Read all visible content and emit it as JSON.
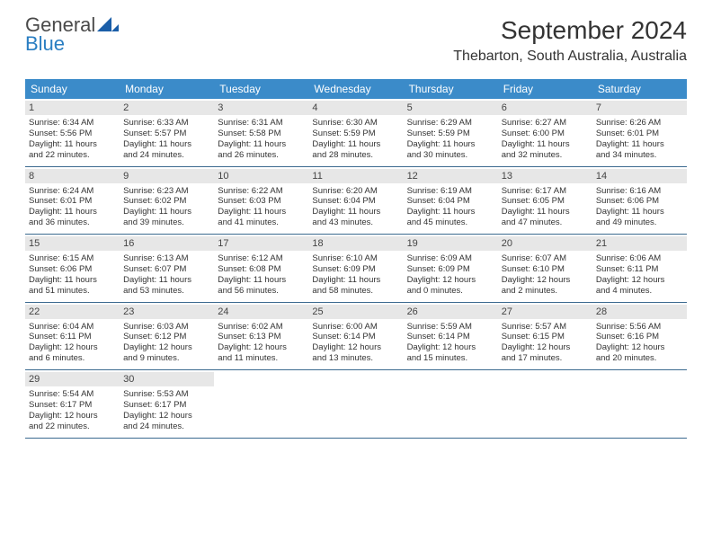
{
  "brand": {
    "word1": "General",
    "word2": "Blue",
    "word1_color": "#4a4a4a",
    "word2_color": "#2a7ec2",
    "logo_fill": "#1a5ea8"
  },
  "title": "September 2024",
  "location": "Thebarton, South Australia, Australia",
  "colors": {
    "header_bg": "#3b8bc9",
    "header_text": "#ffffff",
    "daynum_bg": "#e7e7e7",
    "daynum_text": "#444444",
    "body_text": "#333333",
    "row_border": "#3b6a8f",
    "page_bg": "#ffffff"
  },
  "weekdays": [
    "Sunday",
    "Monday",
    "Tuesday",
    "Wednesday",
    "Thursday",
    "Friday",
    "Saturday"
  ],
  "weeks": [
    [
      {
        "day": "1",
        "sunrise": "Sunrise: 6:34 AM",
        "sunset": "Sunset: 5:56 PM",
        "daylight1": "Daylight: 11 hours",
        "daylight2": "and 22 minutes."
      },
      {
        "day": "2",
        "sunrise": "Sunrise: 6:33 AM",
        "sunset": "Sunset: 5:57 PM",
        "daylight1": "Daylight: 11 hours",
        "daylight2": "and 24 minutes."
      },
      {
        "day": "3",
        "sunrise": "Sunrise: 6:31 AM",
        "sunset": "Sunset: 5:58 PM",
        "daylight1": "Daylight: 11 hours",
        "daylight2": "and 26 minutes."
      },
      {
        "day": "4",
        "sunrise": "Sunrise: 6:30 AM",
        "sunset": "Sunset: 5:59 PM",
        "daylight1": "Daylight: 11 hours",
        "daylight2": "and 28 minutes."
      },
      {
        "day": "5",
        "sunrise": "Sunrise: 6:29 AM",
        "sunset": "Sunset: 5:59 PM",
        "daylight1": "Daylight: 11 hours",
        "daylight2": "and 30 minutes."
      },
      {
        "day": "6",
        "sunrise": "Sunrise: 6:27 AM",
        "sunset": "Sunset: 6:00 PM",
        "daylight1": "Daylight: 11 hours",
        "daylight2": "and 32 minutes."
      },
      {
        "day": "7",
        "sunrise": "Sunrise: 6:26 AM",
        "sunset": "Sunset: 6:01 PM",
        "daylight1": "Daylight: 11 hours",
        "daylight2": "and 34 minutes."
      }
    ],
    [
      {
        "day": "8",
        "sunrise": "Sunrise: 6:24 AM",
        "sunset": "Sunset: 6:01 PM",
        "daylight1": "Daylight: 11 hours",
        "daylight2": "and 36 minutes."
      },
      {
        "day": "9",
        "sunrise": "Sunrise: 6:23 AM",
        "sunset": "Sunset: 6:02 PM",
        "daylight1": "Daylight: 11 hours",
        "daylight2": "and 39 minutes."
      },
      {
        "day": "10",
        "sunrise": "Sunrise: 6:22 AM",
        "sunset": "Sunset: 6:03 PM",
        "daylight1": "Daylight: 11 hours",
        "daylight2": "and 41 minutes."
      },
      {
        "day": "11",
        "sunrise": "Sunrise: 6:20 AM",
        "sunset": "Sunset: 6:04 PM",
        "daylight1": "Daylight: 11 hours",
        "daylight2": "and 43 minutes."
      },
      {
        "day": "12",
        "sunrise": "Sunrise: 6:19 AM",
        "sunset": "Sunset: 6:04 PM",
        "daylight1": "Daylight: 11 hours",
        "daylight2": "and 45 minutes."
      },
      {
        "day": "13",
        "sunrise": "Sunrise: 6:17 AM",
        "sunset": "Sunset: 6:05 PM",
        "daylight1": "Daylight: 11 hours",
        "daylight2": "and 47 minutes."
      },
      {
        "day": "14",
        "sunrise": "Sunrise: 6:16 AM",
        "sunset": "Sunset: 6:06 PM",
        "daylight1": "Daylight: 11 hours",
        "daylight2": "and 49 minutes."
      }
    ],
    [
      {
        "day": "15",
        "sunrise": "Sunrise: 6:15 AM",
        "sunset": "Sunset: 6:06 PM",
        "daylight1": "Daylight: 11 hours",
        "daylight2": "and 51 minutes."
      },
      {
        "day": "16",
        "sunrise": "Sunrise: 6:13 AM",
        "sunset": "Sunset: 6:07 PM",
        "daylight1": "Daylight: 11 hours",
        "daylight2": "and 53 minutes."
      },
      {
        "day": "17",
        "sunrise": "Sunrise: 6:12 AM",
        "sunset": "Sunset: 6:08 PM",
        "daylight1": "Daylight: 11 hours",
        "daylight2": "and 56 minutes."
      },
      {
        "day": "18",
        "sunrise": "Sunrise: 6:10 AM",
        "sunset": "Sunset: 6:09 PM",
        "daylight1": "Daylight: 11 hours",
        "daylight2": "and 58 minutes."
      },
      {
        "day": "19",
        "sunrise": "Sunrise: 6:09 AM",
        "sunset": "Sunset: 6:09 PM",
        "daylight1": "Daylight: 12 hours",
        "daylight2": "and 0 minutes."
      },
      {
        "day": "20",
        "sunrise": "Sunrise: 6:07 AM",
        "sunset": "Sunset: 6:10 PM",
        "daylight1": "Daylight: 12 hours",
        "daylight2": "and 2 minutes."
      },
      {
        "day": "21",
        "sunrise": "Sunrise: 6:06 AM",
        "sunset": "Sunset: 6:11 PM",
        "daylight1": "Daylight: 12 hours",
        "daylight2": "and 4 minutes."
      }
    ],
    [
      {
        "day": "22",
        "sunrise": "Sunrise: 6:04 AM",
        "sunset": "Sunset: 6:11 PM",
        "daylight1": "Daylight: 12 hours",
        "daylight2": "and 6 minutes."
      },
      {
        "day": "23",
        "sunrise": "Sunrise: 6:03 AM",
        "sunset": "Sunset: 6:12 PM",
        "daylight1": "Daylight: 12 hours",
        "daylight2": "and 9 minutes."
      },
      {
        "day": "24",
        "sunrise": "Sunrise: 6:02 AM",
        "sunset": "Sunset: 6:13 PM",
        "daylight1": "Daylight: 12 hours",
        "daylight2": "and 11 minutes."
      },
      {
        "day": "25",
        "sunrise": "Sunrise: 6:00 AM",
        "sunset": "Sunset: 6:14 PM",
        "daylight1": "Daylight: 12 hours",
        "daylight2": "and 13 minutes."
      },
      {
        "day": "26",
        "sunrise": "Sunrise: 5:59 AM",
        "sunset": "Sunset: 6:14 PM",
        "daylight1": "Daylight: 12 hours",
        "daylight2": "and 15 minutes."
      },
      {
        "day": "27",
        "sunrise": "Sunrise: 5:57 AM",
        "sunset": "Sunset: 6:15 PM",
        "daylight1": "Daylight: 12 hours",
        "daylight2": "and 17 minutes."
      },
      {
        "day": "28",
        "sunrise": "Sunrise: 5:56 AM",
        "sunset": "Sunset: 6:16 PM",
        "daylight1": "Daylight: 12 hours",
        "daylight2": "and 20 minutes."
      }
    ],
    [
      {
        "day": "29",
        "sunrise": "Sunrise: 5:54 AM",
        "sunset": "Sunset: 6:17 PM",
        "daylight1": "Daylight: 12 hours",
        "daylight2": "and 22 minutes."
      },
      {
        "day": "30",
        "sunrise": "Sunrise: 5:53 AM",
        "sunset": "Sunset: 6:17 PM",
        "daylight1": "Daylight: 12 hours",
        "daylight2": "and 24 minutes."
      },
      null,
      null,
      null,
      null,
      null
    ]
  ]
}
